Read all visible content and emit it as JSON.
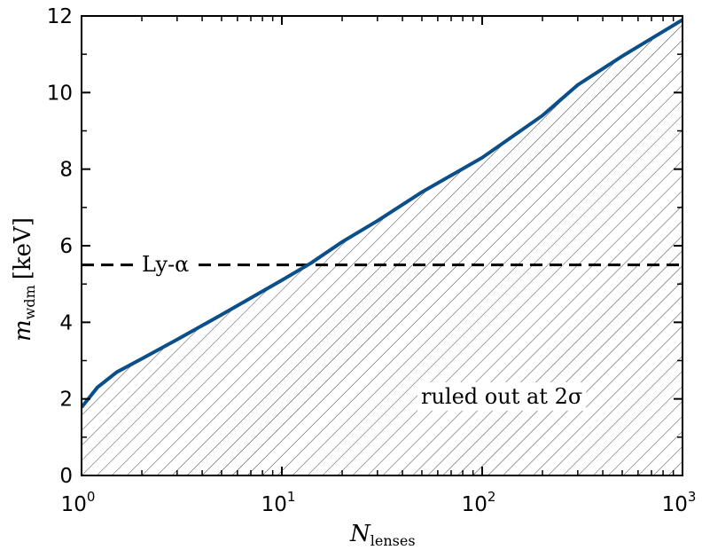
{
  "chart_data": {
    "type": "line",
    "xscale": "log",
    "xlim": [
      1,
      1000
    ],
    "ylim": [
      0,
      12
    ],
    "x_ticks": [
      {
        "base": "10",
        "exp": "0",
        "value": 1
      },
      {
        "base": "10",
        "exp": "1",
        "value": 10
      },
      {
        "base": "10",
        "exp": "2",
        "value": 100
      },
      {
        "base": "10",
        "exp": "3",
        "value": 1000
      }
    ],
    "y_ticks": [
      "0",
      "2",
      "4",
      "6",
      "8",
      "10",
      "12"
    ],
    "xlabel": {
      "main": "N",
      "sub": "lenses"
    },
    "ylabel": {
      "main": "m",
      "sub": "wdm",
      "unit": "[keV]"
    },
    "series": [
      {
        "x": [
          1,
          1.2,
          1.5,
          2,
          3,
          5,
          10,
          14,
          20,
          30,
          50,
          100,
          200,
          300,
          500,
          1000
        ],
        "y": [
          1.78,
          2.3,
          2.7,
          3.05,
          3.55,
          4.2,
          5.1,
          5.55,
          6.1,
          6.65,
          7.4,
          8.3,
          9.4,
          10.2,
          10.95,
          11.9
        ],
        "color": "#0b4f8a"
      }
    ],
    "reference_line": {
      "y": 5.5,
      "label": "Ly-α",
      "style": "dashed",
      "color": "#000000"
    },
    "shaded_region": {
      "label": "ruled out at 2σ",
      "fill": "hatched",
      "region": "below curve"
    },
    "grid": false
  }
}
